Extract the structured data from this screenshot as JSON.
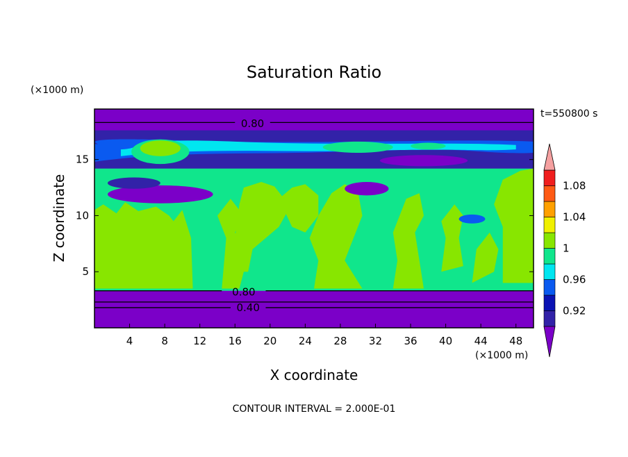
{
  "chart_data": {
    "type": "heatmap",
    "title": "Saturation Ratio",
    "xlabel": "X coordinate",
    "ylabel": "Z coordinate",
    "x_unit": "(×1000 m)",
    "y_unit": "(×1000 m)",
    "time_label": "t=550800 s",
    "footer": "CONTOUR INTERVAL = 2.000E-01",
    "xlim": [
      0,
      50
    ],
    "ylim": [
      0,
      19.5
    ],
    "x_ticks": [
      "4",
      "8",
      "12",
      "16",
      "20",
      "24",
      "28",
      "32",
      "36",
      "40",
      "44",
      "48"
    ],
    "x_tick_values": [
      4,
      8,
      12,
      16,
      20,
      24,
      28,
      32,
      36,
      40,
      44,
      48
    ],
    "y_ticks": [
      "5",
      "10",
      "15"
    ],
    "y_tick_values": [
      5,
      10,
      15
    ],
    "colorbar": {
      "levels": [
        0.9,
        0.92,
        0.94,
        0.96,
        0.98,
        1.0,
        1.02,
        1.04,
        1.06,
        1.08,
        1.1
      ],
      "tick_labels": [
        "0.92",
        "0.96",
        "1",
        "1.04",
        "1.08"
      ],
      "tick_values": [
        0.92,
        0.96,
        1.0,
        1.04,
        1.08
      ],
      "colors": [
        "#7b00c8",
        "#3222a8",
        "#0a12b4",
        "#0a5af0",
        "#00e6f0",
        "#10e68c",
        "#88e600",
        "#f0f000",
        "#ffa000",
        "#ff5a14",
        "#f01e1e"
      ],
      "under_color": "#7b00c8",
      "over_color": "#f5a0a0"
    },
    "contour_labels": [
      {
        "text": "0.80",
        "x": 18,
        "z": 18.2
      },
      {
        "text": "0.80",
        "x": 17,
        "z": 3.2
      },
      {
        "text": "0.40",
        "x": 17.5,
        "z": 1.8
      }
    ],
    "regions": {
      "band_z_0_3.2": "< 0.90 (dry lower layer)",
      "band_z_3.5_14": "0.98 – 1.02 (saturated, patches 1.00 – 1.02)",
      "band_z_14_16.5": "0.90 – 0.98 (mixed)",
      "band_z_17.5_19.5": "< 0.90 (dry upper layer)"
    }
  }
}
